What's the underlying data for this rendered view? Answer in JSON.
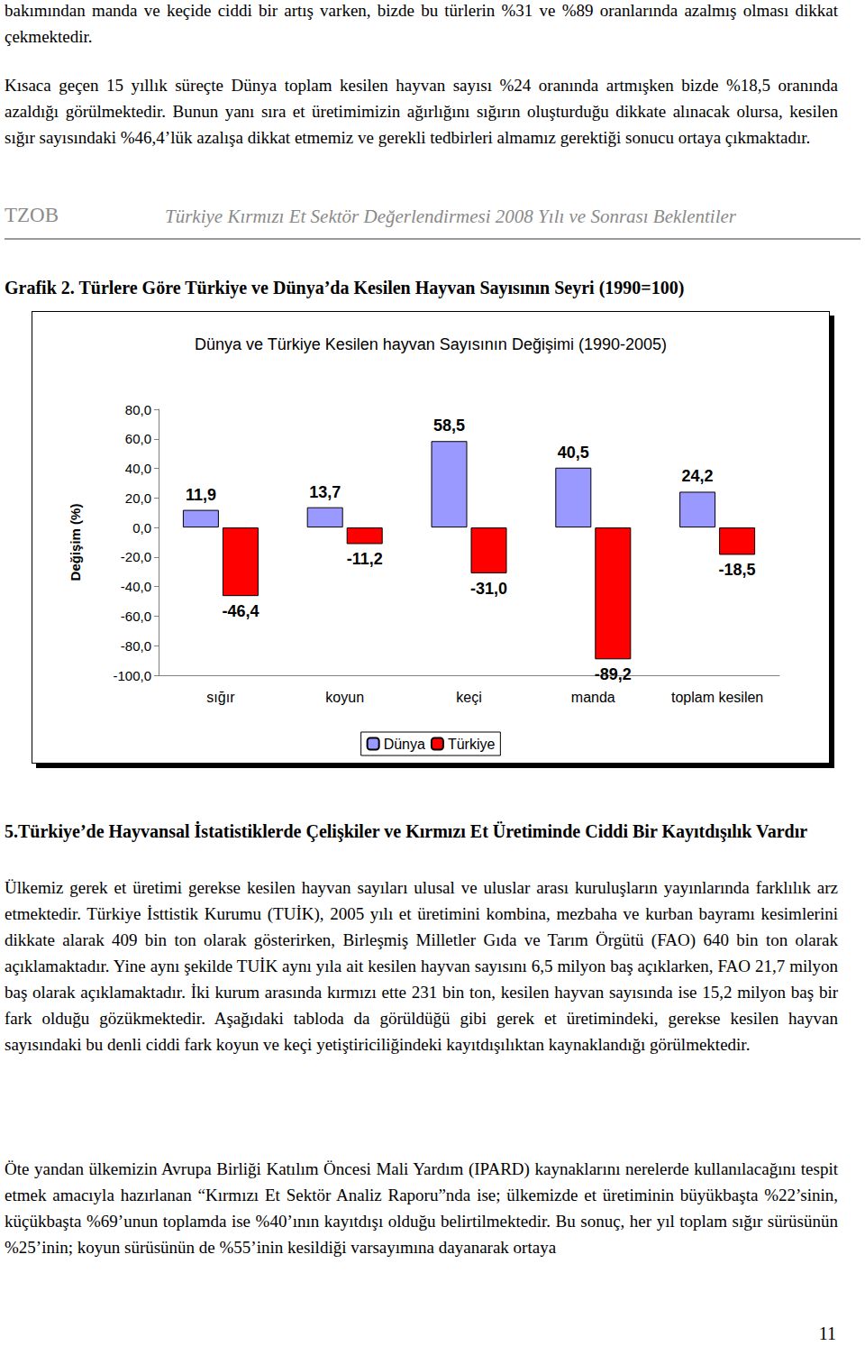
{
  "paragraphs_before": [
    "bakımından manda ve keçide ciddi bir artış varken, bizde bu türlerin %31 ve %89 oranlarında azalmış olması dikkat çekmektedir.",
    "Kısaca geçen 15 yıllık süreçte Dünya toplam kesilen hayvan sayısı %24 oranında artmışken bizde %18,5 oranında azaldığı görülmektedir. Bunun yanı sıra et üretimimizin ağırlığını sığırın oluşturduğu dikkate alınacak olursa, kesilen sığır sayısındaki %46,4’lük azalışa dikkat etmemiz ve gerekli tedbirleri almamız gerektiği sonucu ortaya çıkmaktadır."
  ],
  "header": {
    "left": "TZOB",
    "right": "Türkiye Kırmızı Et Sektör Değerlendirmesi 2008 Yılı ve Sonrası Beklentiler"
  },
  "figure_caption": "Grafik 2. Türlere Göre Türkiye ve Dünya’da Kesilen Hayvan Sayısının Seyri (1990=100)",
  "chart_data": {
    "type": "bar",
    "title": "Dünya ve Türkiye Kesilen hayvan Sayısının Değişimi (1990-2005)",
    "y_label": "Değişim (%)",
    "categories": [
      "sığır",
      "koyun",
      "keçi",
      "manda",
      "toplam kesilen"
    ],
    "series": [
      {
        "name": "Dünya",
        "color": "#9999ff",
        "values": [
          11.9,
          13.7,
          58.5,
          40.5,
          24.2
        ],
        "value_labels": [
          "11,9",
          "13,7",
          "58,5",
          "40,5",
          "24,2"
        ]
      },
      {
        "name": "Türkiye",
        "color": "#ff0000",
        "values": [
          -46.4,
          -11.2,
          -31.0,
          -89.2,
          -18.5
        ],
        "value_labels": [
          "-46,4",
          "-11,2",
          "-31,0",
          "-89,2",
          "-18,5"
        ]
      }
    ],
    "ylim": [
      -100,
      80
    ],
    "yticks": [
      {
        "value": -100,
        "label": "-100,0"
      },
      {
        "value": -80,
        "label": "-80,0"
      },
      {
        "value": -60,
        "label": "-60,0"
      },
      {
        "value": -40,
        "label": "-40,0"
      },
      {
        "value": -20,
        "label": "-20,0"
      },
      {
        "value": 0,
        "label": "0,0"
      },
      {
        "value": 20,
        "label": "20,0"
      },
      {
        "value": 40,
        "label": "40,0"
      },
      {
        "value": 60,
        "label": "60,0"
      },
      {
        "value": 80,
        "label": "80,0"
      }
    ],
    "grid": false,
    "legend": "bottom",
    "data_labels": true
  },
  "section_title": "5.Türkiye’de Hayvansal İstatistiklerde Çelişkiler ve Kırmızı Et Üretiminde Ciddi Bir Kayıtdışılık Vardır",
  "paragraphs_after": [
    "Ülkemiz gerek et üretimi gerekse kesilen hayvan sayıları ulusal ve uluslar arası kuruluşların yayınlarında farklılık arz etmektedir. Türkiye İsttistik Kurumu (TUİK), 2005 yılı et üretimini kombina, mezbaha ve kurban bayramı kesimlerini dikkate alarak 409 bin ton olarak gösterirken, Birleşmiş Milletler Gıda ve Tarım Örgütü (FAO) 640 bin ton olarak açıklamaktadır. Yine aynı şekilde TUİK aynı yıla ait kesilen hayvan sayısını 6,5 milyon baş açıklarken, FAO 21,7 milyon baş olarak açıklamaktadır. İki kurum arasında kırmızı ette 231 bin ton, kesilen hayvan sayısında ise 15,2 milyon baş bir fark olduğu gözükmektedir. Aşağıdaki tabloda da görüldüğü gibi gerek et üretimindeki, gerekse kesilen hayvan sayısındaki bu denli ciddi fark koyun ve keçi yetiştiriciliğindeki kayıtdışılıktan kaynaklandığı görülmektedir.",
    "Öte yandan ülkemizin Avrupa Birliği Katılım Öncesi Mali Yardım (IPARD) kaynaklarını nerelerde kullanılacağını tespit etmek amacıyla hazırlanan “Kırmızı Et Sektör Analiz Raporu”nda ise; ülkemizde et üretiminin büyükbaşta %22’sinin, küçükbaşta %69’unun toplamda ise %40’ının kayıtdışı olduğu belirtilmektedir. Bu sonuç, her yıl toplam sığır sürüsünün %25’inin; koyun sürüsünün de %55’inin kesildiği varsayımına dayanarak ortaya"
  ],
  "page_number": 11
}
